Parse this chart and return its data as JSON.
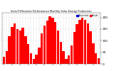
{
  "title": "Solar PV/Inverter Performance Monthly Solar Energy Production",
  "bar_color": "#ff0000",
  "background_color": "#ffffff",
  "grid_color": "#cccccc",
  "values": [
    30,
    55,
    120,
    160,
    175,
    150,
    145,
    155,
    120,
    85,
    45,
    20,
    40,
    70,
    130,
    165,
    185,
    205,
    200,
    180,
    145,
    95,
    55,
    20,
    38,
    80,
    138,
    170,
    190,
    200,
    190,
    175,
    140,
    90,
    45,
    25
  ],
  "ylim": [
    0,
    220
  ],
  "ytick_vals": [
    0,
    50,
    100,
    150,
    200
  ],
  "ytick_labels": [
    "0",
    "50",
    "100",
    "150",
    "200"
  ],
  "legend_labels": [
    "Expected",
    "Actual"
  ],
  "legend_colors": [
    "#0000cc",
    "#ff0000"
  ],
  "n_bars": 36
}
